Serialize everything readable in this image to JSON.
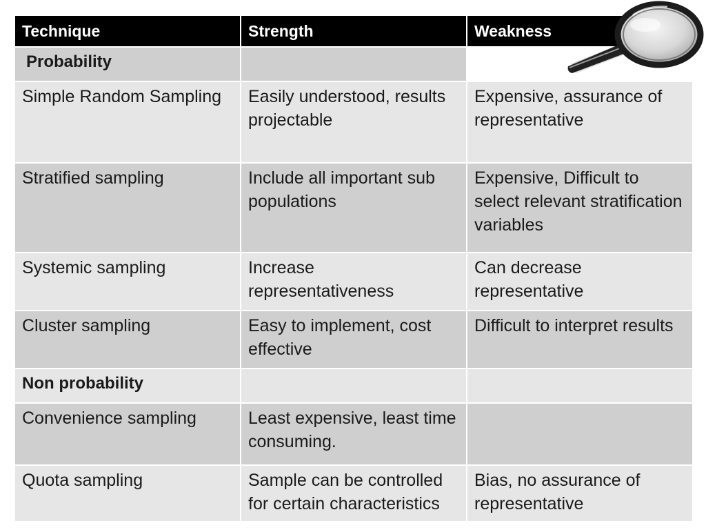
{
  "table": {
    "headers": {
      "technique": "Technique",
      "strength": "Strength",
      "weakness": "Weakness"
    },
    "rows": [
      {
        "technique": "Probability",
        "strength": "",
        "weakness": ""
      },
      {
        "technique": "Simple Random Sampling",
        "strength": "Easily understood, results projectable",
        "weakness": "Expensive, assurance of representative"
      },
      {
        "technique": "Stratified sampling",
        "strength": "Include all important sub populations",
        "weakness": "Expensive, Difficult to select relevant stratification variables"
      },
      {
        "technique": "Systemic sampling",
        "strength": "Increase representativeness",
        "weakness": "Can decrease representative"
      },
      {
        "technique": "Cluster sampling",
        "strength": "Easy to implement, cost effective",
        "weakness": "Difficult to interpret results"
      },
      {
        "technique": "Non probability",
        "strength": "",
        "weakness": ""
      },
      {
        "technique": "Convenience sampling",
        "strength": "Least expensive, least time consuming.",
        "weakness": ""
      },
      {
        "technique": "Quota sampling",
        "strength": "Sample can be controlled for certain characteristics",
        "weakness": "Bias, no assurance of representative"
      }
    ]
  },
  "colors": {
    "header_bg": "#000000",
    "header_text": "#ffffff",
    "row_light": "#e6e6e6",
    "row_dark": "#cfcfcf"
  },
  "icons": {
    "magnifier": "magnifying-glass-icon"
  }
}
